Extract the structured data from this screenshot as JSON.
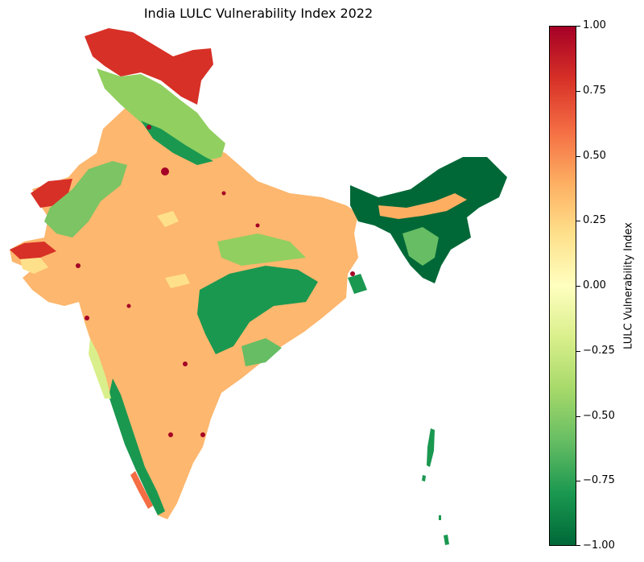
{
  "title": "India LULC Vulnerability Index 2022",
  "colorbar": {
    "label": "LULC Vulnerability Index",
    "min": -1.0,
    "max": 1.0,
    "cmap": "RdYlGn_r",
    "ticks": [
      "1.00",
      "0.75",
      "0.50",
      "0.25",
      "0.00",
      "−0.25",
      "−0.50",
      "−0.75",
      "−1.00"
    ],
    "colors": [
      "#a50026",
      "#d73027",
      "#f46d43",
      "#fdae61",
      "#fee08b",
      "#ffffbf",
      "#d9ef8b",
      "#a6d96a",
      "#66bd63",
      "#1a9850",
      "#006837"
    ]
  },
  "map_colors": {
    "dominant": "#fdb76e",
    "himalaya_high": "#d73027",
    "himalaya_mid": "#91cf60",
    "forest": "#1a9850",
    "dense_forest": "#006837",
    "urban": "#a50026",
    "desert": "#d73027",
    "arid_green": "#7cc464"
  }
}
